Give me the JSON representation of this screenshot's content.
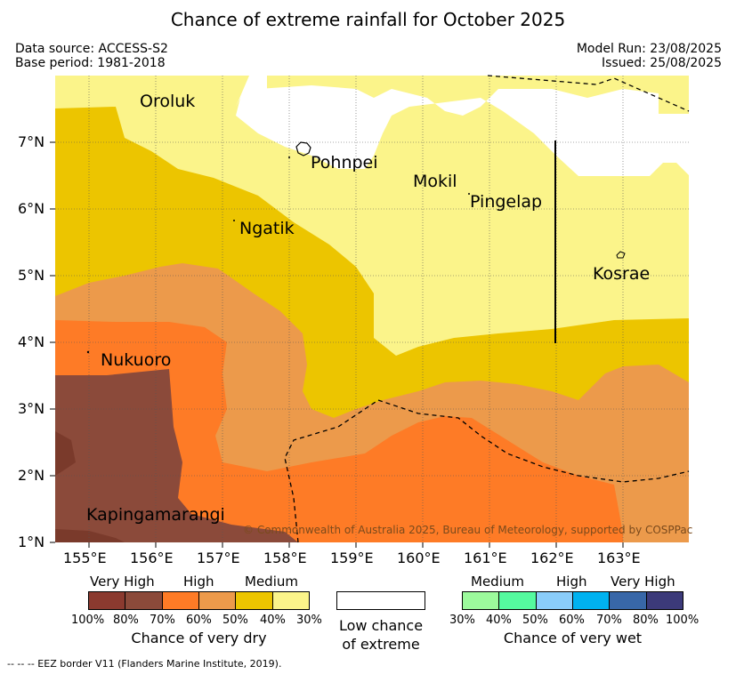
{
  "title": "Chance of extreme rainfall for October 2025",
  "header": {
    "data_source": "Data source: ACCESS-S2",
    "base_period": "Base period: 1981-2018",
    "model_run": "Model Run: 23/08/2025",
    "issued": "Issued: 25/08/2025"
  },
  "map": {
    "lat_labels": [
      "7°N",
      "6°N",
      "5°N",
      "4°N",
      "3°N",
      "2°N",
      "1°N"
    ],
    "lon_labels": [
      "155°E",
      "156°E",
      "157°E",
      "158°E",
      "159°E",
      "160°E",
      "161°E",
      "162°E",
      "163°E"
    ],
    "places": {
      "oroluk": "Oroluk",
      "pohnpei": "Pohnpei",
      "mokil": "Mokil",
      "pingelap": "Pingelap",
      "ngatik": "Ngatik",
      "kosrae": "Kosrae",
      "nukuoro": "Nukuoro",
      "kapingamarangi": "Kapingamarangi"
    },
    "copyright": "© Commonwealth of Australia 2025, Bureau of Meteorology, supported by COSPPac",
    "colors": {
      "dry_100_80": "#8b4433",
      "dry_80_70": "#8b4a3a",
      "dry_70_60": "#fe7b26",
      "dry_60_50": "#ec9a4b",
      "dry_50_40": "#ecc500",
      "dry_40_30": "#fbf48a",
      "low": "#ffffff"
    }
  },
  "legend": {
    "dry": {
      "headers": [
        "Very High",
        "High",
        "Medium"
      ],
      "ticks": [
        "100%",
        "80%",
        "70%",
        "60%",
        "50%",
        "40%",
        "30%"
      ],
      "caption": "Chance of very dry",
      "colors": [
        "#8b3a2f",
        "#8b4a3a",
        "#fe7b26",
        "#ec9a4b",
        "#ecc500",
        "#fbf48a"
      ]
    },
    "low": {
      "caption_line1": "Low chance",
      "caption_line2": "of extreme"
    },
    "wet": {
      "headers": [
        "Medium",
        "High",
        "Very High"
      ],
      "ticks": [
        "30%",
        "40%",
        "50%",
        "60%",
        "70%",
        "80%",
        "100%"
      ],
      "caption": "Chance of very wet",
      "colors": [
        "#9cfa9c",
        "#55fa9f",
        "#8acdfa",
        "#00b2f0",
        "#3867a8",
        "#3c3a7a"
      ]
    }
  },
  "footnote": "-- -- -- EEZ border V11 (Flanders Marine Institute, 2019)."
}
